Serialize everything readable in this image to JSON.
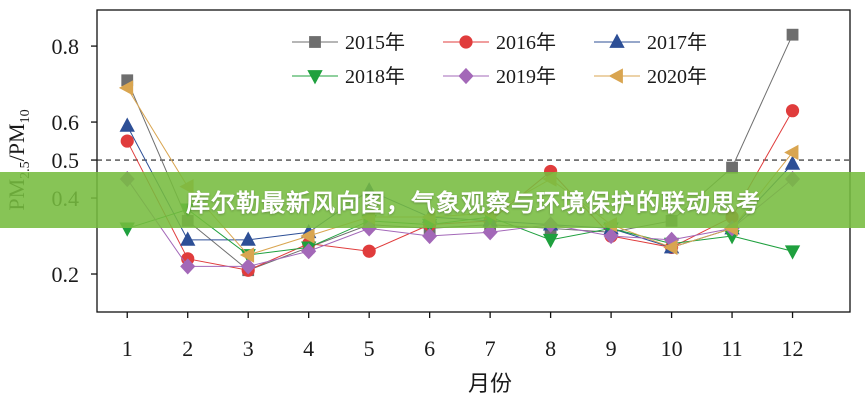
{
  "banner": {
    "text": "库尔勒最新风向图，气象观察与环境保护的联动思考"
  },
  "chart_data": {
    "type": "line",
    "title": "",
    "xlabel": "月份",
    "ylabel": {
      "base1": "PM",
      "sub1": "2.5",
      "base2": "/PM",
      "sub2": "10"
    },
    "x": [
      1,
      2,
      3,
      4,
      5,
      6,
      7,
      8,
      9,
      10,
      11,
      12
    ],
    "xticks": [
      1,
      2,
      3,
      4,
      5,
      6,
      7,
      8,
      9,
      10,
      11,
      12
    ],
    "xtick_labels": [
      "1",
      "2",
      "3",
      "4",
      "5",
      "6",
      "7",
      "8",
      "9",
      "10",
      "11",
      "12"
    ],
    "yticks": [
      0.2,
      0.4,
      0.5,
      0.6,
      0.8
    ],
    "ytick_labels": [
      "0.2",
      "0.4",
      "0.5",
      "0.6",
      "0.8"
    ],
    "xlim": [
      0.5,
      12.95
    ],
    "ylim": [
      0.1,
      0.895
    ],
    "grid": false,
    "reference_lines": [
      {
        "y": 0.5,
        "style": "dashed",
        "color": "#222222"
      }
    ],
    "legend": {
      "placement": "top-center",
      "columns": 3
    },
    "series": [
      {
        "name": "2015年",
        "marker": "square",
        "color": "#6e6e6e",
        "values": [
          0.71,
          0.34,
          0.21,
          0.27,
          0.33,
          0.32,
          0.33,
          0.32,
          0.31,
          0.34,
          0.48,
          0.83
        ]
      },
      {
        "name": "2016年",
        "marker": "circle",
        "color": "#e03c3c",
        "values": [
          0.55,
          0.24,
          0.21,
          0.28,
          0.26,
          0.33,
          0.34,
          0.47,
          0.3,
          0.27,
          0.35,
          0.63
        ]
      },
      {
        "name": "2017年",
        "marker": "triangle-up",
        "color": "#2d4f96",
        "values": [
          0.59,
          0.29,
          0.29,
          0.31,
          0.42,
          0.35,
          0.34,
          0.33,
          0.32,
          0.27,
          0.32,
          0.49
        ]
      },
      {
        "name": "2018年",
        "marker": "triangle-down",
        "color": "#1fa03e",
        "values": [
          0.32,
          0.37,
          0.25,
          0.27,
          0.34,
          0.33,
          0.35,
          0.29,
          0.32,
          0.28,
          0.3,
          0.26
        ]
      },
      {
        "name": "2019年",
        "marker": "diamond",
        "color": "#a368b8",
        "values": [
          0.45,
          0.22,
          0.22,
          0.26,
          0.32,
          0.3,
          0.31,
          0.33,
          0.3,
          0.29,
          0.32,
          0.45
        ]
      },
      {
        "name": "2020年",
        "marker": "triangle-left",
        "color": "#d9a550",
        "values": [
          0.69,
          0.43,
          0.25,
          0.3,
          0.35,
          0.35,
          0.36,
          0.45,
          0.33,
          0.27,
          0.32,
          0.52
        ]
      }
    ]
  }
}
